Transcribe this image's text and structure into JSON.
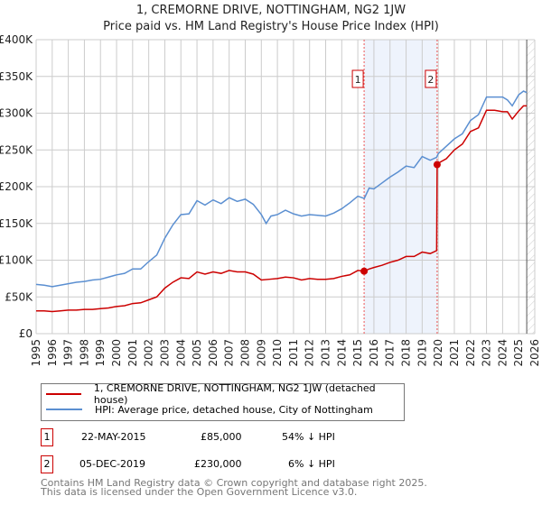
{
  "chart_data": {
    "type": "line",
    "title": "1, CREMORNE DRIVE, NOTTINGHAM, NG2 1JW",
    "subtitle": "Price paid vs. HM Land Registry's House Price Index (HPI)",
    "xlim": [
      1995,
      2026
    ],
    "ylim": [
      0,
      400000
    ],
    "y_ticks": [
      {
        "v": 0,
        "label": "£0"
      },
      {
        "v": 50000,
        "label": "£50K"
      },
      {
        "v": 100000,
        "label": "£100K"
      },
      {
        "v": 150000,
        "label": "£150K"
      },
      {
        "v": 200000,
        "label": "£200K"
      },
      {
        "v": 250000,
        "label": "£250K"
      },
      {
        "v": 300000,
        "label": "£300K"
      },
      {
        "v": 350000,
        "label": "£350K"
      },
      {
        "v": 400000,
        "label": "£400K"
      }
    ],
    "x_ticks": [
      "1995",
      "1996",
      "1997",
      "1998",
      "1999",
      "2000",
      "2001",
      "2002",
      "2003",
      "2004",
      "2005",
      "2006",
      "2007",
      "2008",
      "2009",
      "2010",
      "2011",
      "2012",
      "2013",
      "2014",
      "2015",
      "2016",
      "2017",
      "2018",
      "2019",
      "2020",
      "2021",
      "2022",
      "2023",
      "2024",
      "2025",
      "2026"
    ],
    "grid": true,
    "series": [
      {
        "name": "1, CREMORNE DRIVE, NOTTINGHAM, NG2 1JW (detached house)",
        "color": "#cc0000",
        "x": [
          1995,
          1995.5,
          1996,
          1996.5,
          1997,
          1997.5,
          1998,
          1998.5,
          1999,
          1999.5,
          2000,
          2000.5,
          2001,
          2001.5,
          2002,
          2002.5,
          2003,
          2003.5,
          2004,
          2004.5,
          2005,
          2005.5,
          2006,
          2006.5,
          2007,
          2007.5,
          2008,
          2008.5,
          2009,
          2009.5,
          2010,
          2010.5,
          2011,
          2011.5,
          2012,
          2012.5,
          2013,
          2013.5,
          2014,
          2014.5,
          2015,
          2015.39,
          2015.7,
          2016,
          2016.5,
          2017,
          2017.5,
          2018,
          2018.5,
          2019,
          2019.5,
          2019.9,
          2019.93,
          2020,
          2020.5,
          2021,
          2021.5,
          2022,
          2022.5,
          2023,
          2023.5,
          2024,
          2024.3,
          2024.6,
          2025,
          2025.3,
          2025.5
        ],
        "y": [
          31000,
          31000,
          30000,
          31000,
          32000,
          32000,
          33000,
          33000,
          34000,
          35000,
          37000,
          38000,
          41000,
          42000,
          46000,
          50000,
          62000,
          70000,
          76000,
          75000,
          84000,
          81000,
          84000,
          82000,
          86000,
          84000,
          84000,
          81000,
          73000,
          74000,
          75000,
          77000,
          76000,
          73000,
          75000,
          74000,
          74000,
          75000,
          78000,
          80000,
          86000,
          85000,
          88000,
          90000,
          93000,
          97000,
          100000,
          105000,
          105000,
          111000,
          109000,
          113000,
          230000,
          232000,
          238000,
          250000,
          258000,
          275000,
          280000,
          304000,
          304000,
          302000,
          302000,
          292000,
          303000,
          310000,
          310000
        ]
      },
      {
        "name": "HPI: Average price, detached house, City of Nottingham",
        "color": "#5b8fd1",
        "x": [
          1995,
          1995.5,
          1996,
          1996.5,
          1997,
          1997.5,
          1998,
          1998.5,
          1999,
          1999.5,
          2000,
          2000.5,
          2001,
          2001.5,
          2002,
          2002.5,
          2003,
          2003.5,
          2004,
          2004.5,
          2005,
          2005.5,
          2006,
          2006.5,
          2007,
          2007.5,
          2008,
          2008.5,
          2009,
          2009.3,
          2009.6,
          2010,
          2010.5,
          2011,
          2011.5,
          2012,
          2012.5,
          2013,
          2013.5,
          2014,
          2014.5,
          2015,
          2015.4,
          2015.7,
          2016,
          2016.5,
          2017,
          2017.5,
          2018,
          2018.5,
          2019,
          2019.5,
          2019.9,
          2020,
          2020.5,
          2021,
          2021.5,
          2022,
          2022.5,
          2023,
          2023.5,
          2024,
          2024.3,
          2024.6,
          2025,
          2025.3,
          2025.5
        ],
        "y": [
          67000,
          66000,
          64000,
          66000,
          68000,
          70000,
          71000,
          73000,
          74000,
          77000,
          80000,
          82000,
          88000,
          88000,
          98000,
          107000,
          130000,
          148000,
          162000,
          163000,
          181000,
          175000,
          182000,
          177000,
          185000,
          180000,
          183000,
          176000,
          162000,
          150000,
          160000,
          162000,
          168000,
          163000,
          160000,
          162000,
          161000,
          160000,
          164000,
          170000,
          178000,
          187000,
          184000,
          198000,
          197000,
          205000,
          213000,
          220000,
          228000,
          226000,
          241000,
          236000,
          240000,
          245000,
          255000,
          265000,
          272000,
          290000,
          298000,
          322000,
          322000,
          322000,
          318000,
          310000,
          325000,
          330000,
          328000
        ]
      }
    ],
    "annotations": [
      {
        "label": "1",
        "x": 2015.39
      },
      {
        "label": "2",
        "x": 2019.93
      }
    ],
    "sales": [
      {
        "x": 2015.39,
        "y": 85000
      },
      {
        "x": 2019.93,
        "y": 230000
      }
    ],
    "forecast_from": 2025.5
  },
  "legend": {
    "items": [
      "1, CREMORNE DRIVE, NOTTINGHAM, NG2 1JW (detached house)",
      "HPI: Average price, detached house, City of Nottingham"
    ]
  },
  "table": [
    {
      "num": "1",
      "date": "22-MAY-2015",
      "price": "£85,000",
      "hpi": "54% ↓ HPI"
    },
    {
      "num": "2",
      "date": "05-DEC-2019",
      "price": "£230,000",
      "hpi": "6% ↓ HPI"
    }
  ],
  "footer": {
    "line1": "Contains HM Land Registry data © Crown copyright and database right 2025.",
    "line2": "This data is licensed under the Open Government Licence v3.0."
  }
}
